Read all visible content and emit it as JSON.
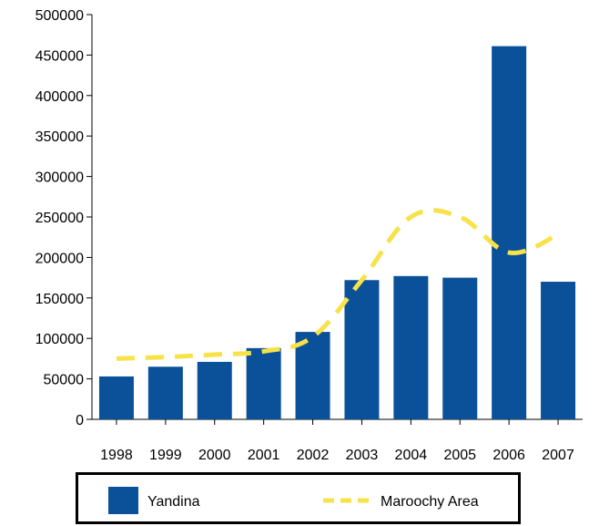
{
  "chart_data": {
    "type": "bar",
    "categories": [
      "1998",
      "1999",
      "2000",
      "2001",
      "2002",
      "2003",
      "2004",
      "2005",
      "2006",
      "2007"
    ],
    "series": [
      {
        "name": "Yandina",
        "kind": "bar",
        "color": "#0a5199",
        "values": [
          53000,
          65000,
          71000,
          88000,
          108000,
          172000,
          177000,
          175000,
          461000,
          170000
        ]
      },
      {
        "name": "Maroochy Area",
        "kind": "dashed-line",
        "color": "#f7e24a",
        "values": [
          75000,
          77000,
          80000,
          84000,
          102000,
          172000,
          250000,
          250000,
          206000,
          228000
        ]
      }
    ],
    "title": "",
    "xlabel": "",
    "ylabel": "",
    "ylim": [
      0,
      500000
    ],
    "yticks": [
      "500000",
      "450000",
      "400000",
      "350000",
      "300000",
      "250000",
      "200000",
      "150000",
      "100000",
      "50000",
      "0"
    ],
    "grid": false,
    "legend_position": "bottom"
  }
}
